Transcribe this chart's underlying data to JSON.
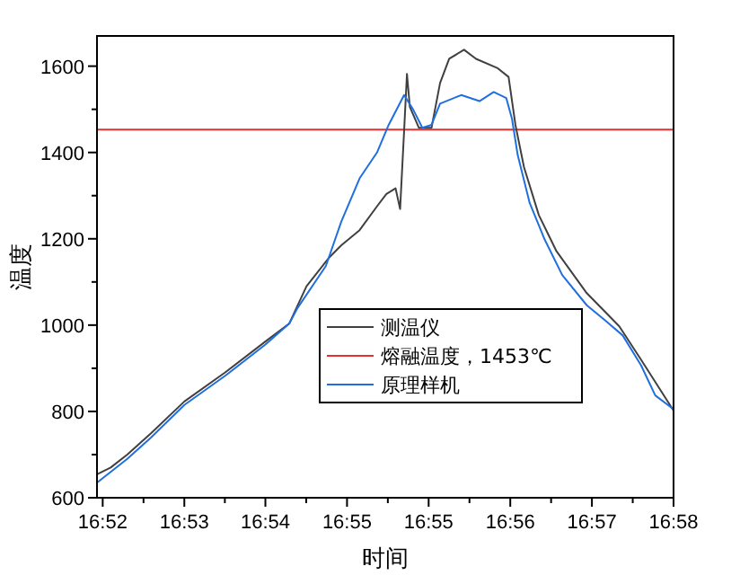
{
  "chart_data": {
    "type": "line",
    "xlabel": "时间",
    "ylabel": "温度",
    "xlim": [
      16.8657,
      16.9667
    ],
    "xticks": [
      {
        "value": 16.8667,
        "label": "16:52"
      },
      {
        "value": 16.881,
        "label": "16:53"
      },
      {
        "value": 16.8952,
        "label": "16:54"
      },
      {
        "value": 16.9095,
        "label": "16:55"
      },
      {
        "value": 16.9238,
        "label": "16:55"
      },
      {
        "value": 16.9381,
        "label": "16:56"
      },
      {
        "value": 16.9524,
        "label": "16:57"
      },
      {
        "value": 16.9667,
        "label": "16:58"
      }
    ],
    "ylim": [
      600,
      1670
    ],
    "yticks": [
      600,
      800,
      1000,
      1200,
      1400,
      1600
    ],
    "series": [
      {
        "name": "测温仪",
        "color": "#404040",
        "x": [
          16.8658,
          16.8681,
          16.871,
          16.8752,
          16.881,
          16.8881,
          16.8952,
          16.8994,
          16.9024,
          16.9064,
          16.9085,
          16.9117,
          16.9148,
          16.9164,
          16.918,
          16.9188,
          16.9195,
          16.92,
          16.9205,
          16.9221,
          16.9243,
          16.9258,
          16.9274,
          16.93,
          16.9321,
          16.9358,
          16.9378,
          16.939,
          16.9405,
          16.9431,
          16.9462,
          16.9515,
          16.9572,
          16.961,
          16.9667
        ],
        "values": [
          655,
          670,
          700,
          750,
          823,
          890,
          962,
          1004,
          1090,
          1157,
          1185,
          1220,
          1276,
          1304,
          1317,
          1269,
          1450,
          1582,
          1506,
          1457,
          1457,
          1561,
          1617,
          1638,
          1617,
          1596,
          1575,
          1464,
          1366,
          1255,
          1171,
          1074,
          997,
          920,
          802
        ]
      },
      {
        "name": "原理样机",
        "color": "#1f6fe0",
        "x": [
          16.8658,
          16.8681,
          16.871,
          16.8752,
          16.881,
          16.8881,
          16.8952,
          16.8994,
          16.9008,
          16.9058,
          16.9085,
          16.9117,
          16.9148,
          16.9168,
          16.9195,
          16.9211,
          16.9227,
          16.9243,
          16.9258,
          16.9295,
          16.9327,
          16.9352,
          16.9374,
          16.9384,
          16.9394,
          16.9415,
          16.9441,
          16.9472,
          16.9515,
          16.9547,
          16.9578,
          16.961,
          16.9635,
          16.9667
        ],
        "values": [
          636,
          660,
          690,
          740,
          815,
          882,
          955,
          1004,
          1039,
          1137,
          1240,
          1340,
          1401,
          1464,
          1533,
          1499,
          1457,
          1464,
          1513,
          1533,
          1519,
          1540,
          1526,
          1478,
          1394,
          1283,
          1199,
          1116,
          1046,
          1011,
          976,
          907,
          837,
          805
        ]
      }
    ],
    "ref_lines": [
      {
        "axis": "y",
        "value": 1453,
        "label": "熔融温度，1453℃",
        "color": "#e03030"
      }
    ],
    "legend": "bottom",
    "grid": false,
    "marker": "none",
    "line_style": "solid"
  }
}
